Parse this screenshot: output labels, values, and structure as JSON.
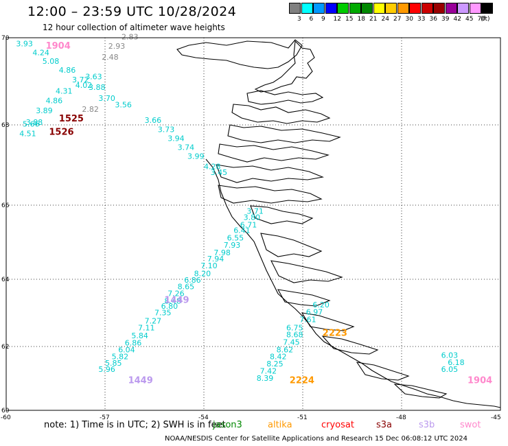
{
  "header": {
    "title": "12:00 – 23:59 UTC 10/28/2024",
    "subtitle": "12 hour collection of altimeter wave heights"
  },
  "colorbar": {
    "colors": [
      "#808080",
      "#00ffff",
      "#0099ff",
      "#0000ff",
      "#00cc00",
      "#00aa00",
      "#008800",
      "#ffff00",
      "#ffcc00",
      "#ff9900",
      "#ff0000",
      "#cc0000",
      "#990000",
      "#990099",
      "#cc99ff",
      "#ff99ff",
      "#000000"
    ],
    "labels": [
      "3",
      "6",
      "9",
      "12",
      "15",
      "18",
      "21",
      "24",
      "27",
      "30",
      "33",
      "36",
      "39",
      "42",
      "45",
      "70",
      "(ft)"
    ]
  },
  "axes": {
    "x_ticks": [
      "-60",
      "-57",
      "-54",
      "-51",
      "-48",
      "-45"
    ],
    "y_ticks": [
      "60",
      "62",
      "64",
      "66",
      "68",
      "70"
    ]
  },
  "tracks": [
    {
      "satellite": "gray",
      "color": "#888888",
      "points": [
        {
          "lon": -56.5,
          "lat": 69.96,
          "v": "2.83"
        },
        {
          "lon": -56.9,
          "lat": 69.75,
          "v": "2.93"
        },
        {
          "lon": -57.1,
          "lat": 69.5,
          "v": "2.48"
        },
        {
          "lon": -57.7,
          "lat": 68.3,
          "v": "2.82"
        }
      ]
    },
    {
      "satellite": "ice-track-1",
      "color": "#00cccc",
      "points": [
        {
          "lon": -59.7,
          "lat": 69.8,
          "v": "3.93"
        },
        {
          "lon": -59.2,
          "lat": 69.6,
          "v": "4.24"
        },
        {
          "lon": -58.9,
          "lat": 69.4,
          "v": "5.08"
        },
        {
          "lon": -58.4,
          "lat": 69.2,
          "v": "4.86"
        },
        {
          "lon": -58.0,
          "lat": 68.98,
          "v": "3.72"
        },
        {
          "lon": -57.6,
          "lat": 69.05,
          "v": "3.63"
        },
        {
          "lon": -57.9,
          "lat": 68.85,
          "v": "4.02"
        },
        {
          "lon": -57.5,
          "lat": 68.8,
          "v": "3.88"
        },
        {
          "lon": -58.5,
          "lat": 68.72,
          "v": "4.31"
        },
        {
          "lon": -58.8,
          "lat": 68.5,
          "v": "4.86"
        },
        {
          "lon": -59.1,
          "lat": 68.27,
          "v": "3.89"
        },
        {
          "lon": -59.4,
          "lat": 68.0,
          "v": "3.88"
        },
        {
          "lon": -59.5,
          "lat": 67.96,
          "v": "5.66"
        },
        {
          "lon": -59.6,
          "lat": 67.72,
          "v": "4.51"
        },
        {
          "lon": -57.2,
          "lat": 68.55,
          "v": "3.70"
        },
        {
          "lon": -56.7,
          "lat": 68.4,
          "v": "3.56"
        },
        {
          "lon": -55.8,
          "lat": 68.05,
          "v": "3.66"
        },
        {
          "lon": -55.4,
          "lat": 67.82,
          "v": "3.73"
        },
        {
          "lon": -55.1,
          "lat": 67.6,
          "v": "3.94"
        },
        {
          "lon": -54.8,
          "lat": 67.38,
          "v": "3.74"
        },
        {
          "lon": -54.5,
          "lat": 67.15,
          "v": "3.99"
        },
        {
          "lon": -54.0,
          "lat": 66.9,
          "v": "4.28"
        },
        {
          "lon": -53.8,
          "lat": 66.75,
          "v": "3.45"
        },
        {
          "lon": -52.7,
          "lat": 65.77,
          "v": "3.71"
        },
        {
          "lon": -52.8,
          "lat": 65.6,
          "v": "3.80"
        },
        {
          "lon": -52.9,
          "lat": 65.4,
          "v": "6.71"
        },
        {
          "lon": -53.1,
          "lat": 65.25,
          "v": "6.41"
        },
        {
          "lon": -53.3,
          "lat": 65.05,
          "v": "6.55"
        },
        {
          "lon": -53.4,
          "lat": 64.85,
          "v": "7.93"
        },
        {
          "lon": -53.7,
          "lat": 64.65,
          "v": "7.98"
        },
        {
          "lon": -53.9,
          "lat": 64.48,
          "v": "7.94"
        },
        {
          "lon": -54.1,
          "lat": 64.3,
          "v": "7.10"
        },
        {
          "lon": -54.3,
          "lat": 64.08,
          "v": "8.20"
        },
        {
          "lon": -54.6,
          "lat": 63.9,
          "v": "6.86"
        },
        {
          "lon": -54.8,
          "lat": 63.7,
          "v": "8.65"
        },
        {
          "lon": -55.1,
          "lat": 63.5,
          "v": "7.26"
        },
        {
          "lon": -55.2,
          "lat": 63.28,
          "v": "8.48"
        },
        {
          "lon": -55.3,
          "lat": 63.12,
          "v": "6.80"
        },
        {
          "lon": -55.5,
          "lat": 62.93,
          "v": "7.35"
        },
        {
          "lon": -55.8,
          "lat": 62.68,
          "v": "7.27"
        },
        {
          "lon": -56.0,
          "lat": 62.48,
          "v": "7.11"
        },
        {
          "lon": -56.2,
          "lat": 62.25,
          "v": "5.84"
        },
        {
          "lon": -56.4,
          "lat": 62.03,
          "v": "6.86"
        },
        {
          "lon": -56.6,
          "lat": 61.82,
          "v": "6.04"
        },
        {
          "lon": -56.8,
          "lat": 61.6,
          "v": "5.82"
        },
        {
          "lon": -57.0,
          "lat": 61.4,
          "v": "5.85"
        },
        {
          "lon": -57.2,
          "lat": 61.2,
          "v": "5.96"
        }
      ]
    },
    {
      "satellite": "ice-track-2",
      "color": "#00cccc",
      "points": [
        {
          "lon": -50.7,
          "lat": 63.16,
          "v": "6.20"
        },
        {
          "lon": -50.9,
          "lat": 62.95,
          "v": "6.97"
        },
        {
          "lon": -51.1,
          "lat": 62.72,
          "v": "7.61"
        },
        {
          "lon": -51.5,
          "lat": 62.48,
          "v": "6.75"
        },
        {
          "lon": -51.5,
          "lat": 62.28,
          "v": "8.68"
        },
        {
          "lon": -51.6,
          "lat": 62.05,
          "v": "7.45"
        },
        {
          "lon": -51.8,
          "lat": 61.82,
          "v": "8.62"
        },
        {
          "lon": -52.0,
          "lat": 61.6,
          "v": "8.42"
        },
        {
          "lon": -52.1,
          "lat": 61.38,
          "v": "8.25"
        },
        {
          "lon": -52.3,
          "lat": 61.15,
          "v": "7.42"
        },
        {
          "lon": -52.4,
          "lat": 60.92,
          "v": "8.39"
        },
        {
          "lon": -46.8,
          "lat": 61.65,
          "v": "6.03"
        },
        {
          "lon": -46.6,
          "lat": 61.42,
          "v": "6.18"
        },
        {
          "lon": -46.8,
          "lat": 61.2,
          "v": "6.05"
        }
      ]
    }
  ],
  "time_labels": [
    {
      "text": "1904",
      "lon": -58.8,
      "lat": 69.75,
      "color": "#ff88cc"
    },
    {
      "text": "1525",
      "lon": -58.4,
      "lat": 68.08,
      "color": "#880000"
    },
    {
      "text": "1526",
      "lon": -58.7,
      "lat": 67.75,
      "color": "#880000"
    },
    {
      "text": "1449",
      "lon": -55.2,
      "lat": 63.3,
      "color": "#bb99ee"
    },
    {
      "text": "1449",
      "lon": -56.3,
      "lat": 60.85,
      "color": "#bb99ee"
    },
    {
      "text": "2223",
      "lon": -50.4,
      "lat": 62.32,
      "color": "#ff9900"
    },
    {
      "text": "2224",
      "lon": -51.4,
      "lat": 60.85,
      "color": "#ff9900"
    },
    {
      "text": "1904",
      "lon": -46.0,
      "lat": 60.85,
      "color": "#ff88cc"
    }
  ],
  "note": "note:  1) Time is in UTC; 2) SWH is in feet",
  "legend": [
    {
      "label": "jason3",
      "color": "#008800"
    },
    {
      "label": "altika",
      "color": "#ff9900"
    },
    {
      "label": "cryosat",
      "color": "#ff0000"
    },
    {
      "label": "s3a",
      "color": "#880000"
    },
    {
      "label": "s3b",
      "color": "#bb99ee"
    },
    {
      "label": "swot",
      "color": "#ff88cc"
    }
  ],
  "credit": "NOAA/NESDIS Center for Satellite Applications and Research   15 Dec 06:08:12 UTC 2024"
}
